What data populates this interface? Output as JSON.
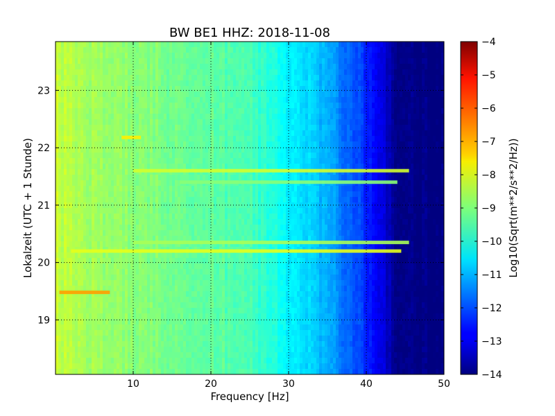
{
  "chart_data": {
    "type": "heatmap",
    "title": "BW BE1 HHZ: 2018-11-08",
    "xlabel": "Frequency [Hz]",
    "ylabel": "Lokalzeit (UTC + 1 Stunde)",
    "xlim": [
      0,
      50
    ],
    "ylim": [
      23.85,
      18.05
    ],
    "x_ticks": [
      10,
      20,
      30,
      40,
      50
    ],
    "x_tick_labels": [
      "10",
      "20",
      "30",
      "40",
      "50"
    ],
    "y_ticks": [
      19,
      20,
      21,
      22,
      23
    ],
    "y_tick_labels": [
      "19",
      "20",
      "21",
      "22",
      "23"
    ],
    "grid": true,
    "colormap": "jet",
    "colorbar": {
      "label": "Log10(Sqrt(m**2/s**2/Hz))",
      "range": [
        -14,
        -4
      ],
      "ticks": [
        -4,
        -5,
        -6,
        -7,
        -8,
        -9,
        -10,
        -11,
        -12,
        -13,
        -14
      ],
      "tick_labels": [
        "−4",
        "−5",
        "−6",
        "−7",
        "−8",
        "−9",
        "−10",
        "−11",
        "−12",
        "−13",
        "−14"
      ]
    },
    "base_profile": {
      "frequency_hz": [
        0,
        2,
        5,
        10,
        15,
        20,
        25,
        28,
        30,
        32,
        34,
        36,
        38,
        40,
        42,
        43,
        44,
        50
      ],
      "value": [
        -8.3,
        -8.5,
        -8.7,
        -8.9,
        -9.1,
        -9.3,
        -9.6,
        -9.9,
        -10.3,
        -10.6,
        -10.9,
        -11.3,
        -11.8,
        -12.4,
        -13.0,
        -13.5,
        -14.0,
        -14.0
      ]
    },
    "horizontal_bands": [
      {
        "time_h": 19.48,
        "from_hz": 0.5,
        "to_hz": 7,
        "value": -6.8
      },
      {
        "time_h": 20.2,
        "from_hz": 2,
        "to_hz": 44.5,
        "value": -8.0
      },
      {
        "time_h": 20.35,
        "from_hz": 10,
        "to_hz": 45.5,
        "value": -8.6
      },
      {
        "time_h": 21.4,
        "from_hz": 16,
        "to_hz": 44,
        "value": -8.9
      },
      {
        "time_h": 21.6,
        "from_hz": 10,
        "to_hz": 45.5,
        "value": -8.2
      },
      {
        "time_h": 22.18,
        "from_hz": 8.5,
        "to_hz": 11,
        "value": -7.6
      }
    ]
  }
}
